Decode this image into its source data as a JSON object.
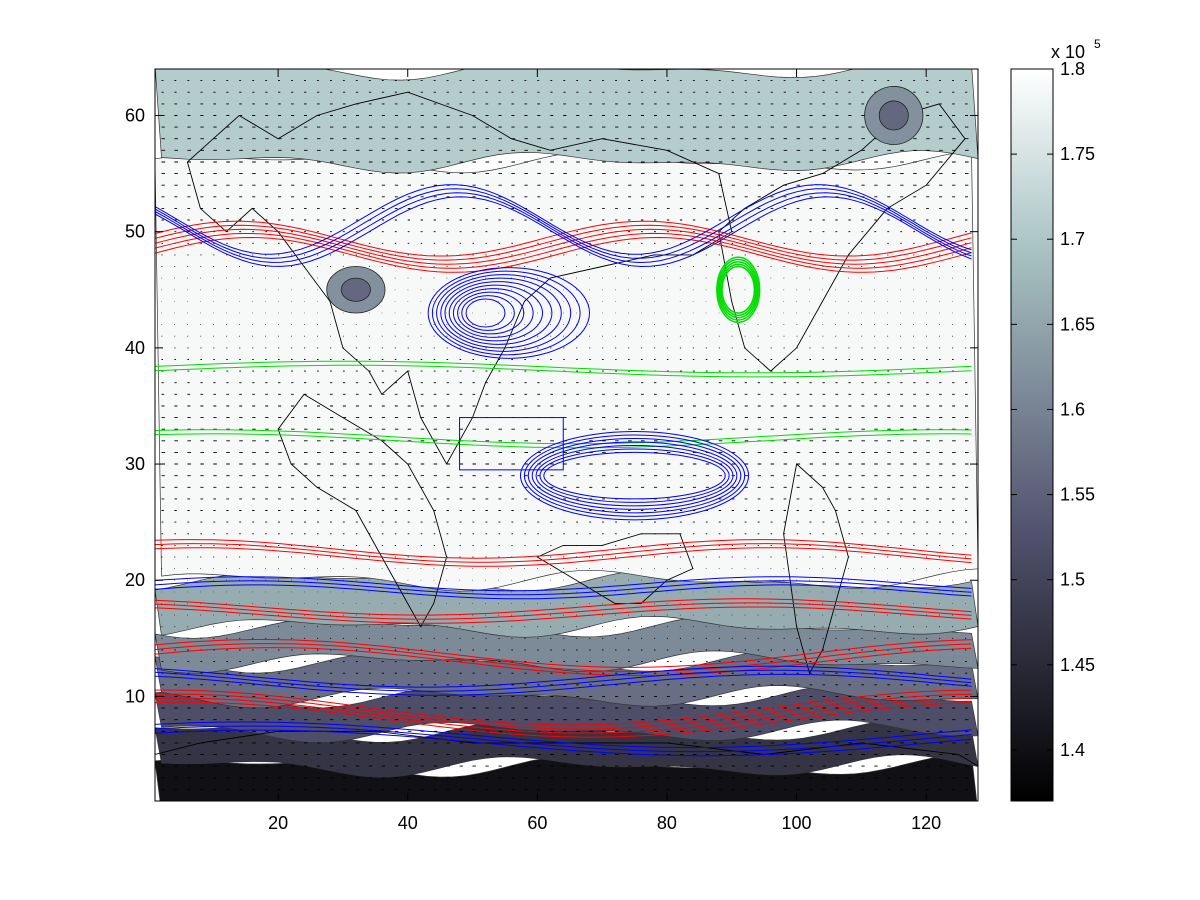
{
  "chart_data": {
    "type": "heatmap",
    "title": "",
    "xlabel": "",
    "ylabel": "",
    "xlim": [
      1,
      128
    ],
    "ylim": [
      1,
      64
    ],
    "x_ticks": [
      20,
      40,
      60,
      80,
      100,
      120
    ],
    "y_ticks": [
      10,
      20,
      30,
      40,
      50,
      60
    ],
    "colorbar": {
      "min": 1.37,
      "max": 1.8,
      "ticks": [
        "1.4",
        "1.45",
        "1.5",
        "1.55",
        "1.6",
        "1.65",
        "1.7",
        "1.75",
        "1.8"
      ],
      "exponent_label": "x 10",
      "exponent": "5",
      "colormap": "bone"
    },
    "shading_bands": [
      {
        "y": [
          1,
          4
        ],
        "value": 1.4
      },
      {
        "y": [
          4,
          7
        ],
        "value": 1.47
      },
      {
        "y": [
          7,
          10
        ],
        "value": 1.52
      },
      {
        "y": [
          10,
          13
        ],
        "value": 1.57
      },
      {
        "y": [
          13,
          16
        ],
        "value": 1.61
      },
      {
        "y": [
          16,
          20
        ],
        "value": 1.66
      },
      {
        "y": [
          20,
          56
        ],
        "value": 1.79
      },
      {
        "y": [
          56,
          64
        ],
        "value": 1.71
      }
    ],
    "features": {
      "blue_loop_upper": {
        "x": 52,
        "y": 43
      },
      "blue_loop_lower": {
        "x": 75,
        "y": 29
      },
      "green_loop": {
        "x": 90,
        "y": 45
      },
      "dark_patch_a": {
        "x": 32,
        "y": 45
      },
      "dark_patch_b": {
        "x": 115,
        "y": 60
      },
      "box": {
        "x": [
          48,
          64
        ],
        "y": [
          29.5,
          34
        ]
      }
    },
    "series": [
      {
        "color": "#ff0000"
      },
      {
        "color": "#0000ff"
      },
      {
        "color": "#00dd00"
      }
    ],
    "grid": false
  },
  "colors": {
    "red": "#ff0000",
    "blue": "#0000ff",
    "green": "#00dd00",
    "coast": "#000000"
  }
}
